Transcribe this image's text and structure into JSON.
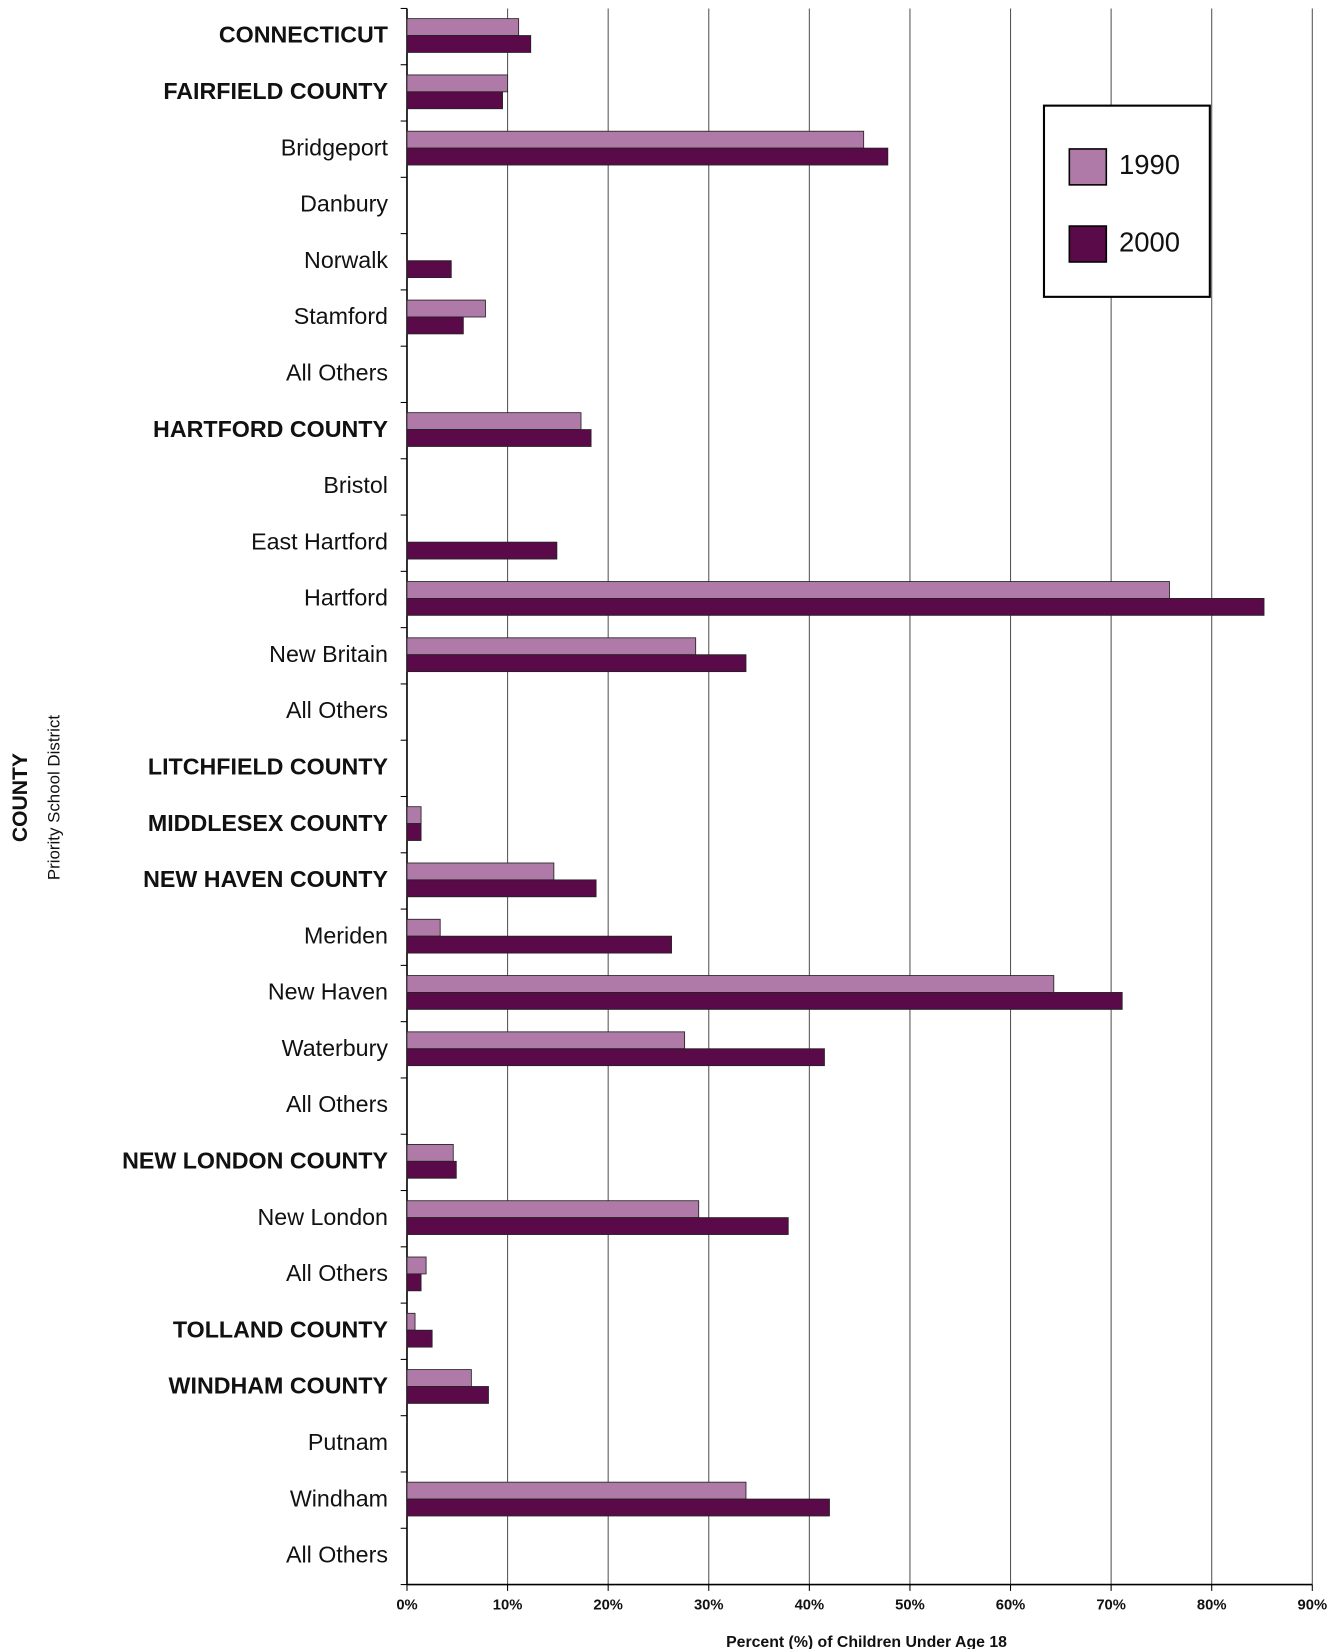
{
  "chart_data": {
    "type": "bar",
    "orientation": "horizontal",
    "x_label": "Percent (%) of Children Under Age 18",
    "y_label": "COUNTY",
    "y_sublabel": "Priority School District",
    "categories": [
      "CONNECTICUT",
      "FAIRFIELD COUNTY",
      "Bridgeport",
      "Danbury",
      "Norwalk",
      "Stamford",
      "All Others",
      "HARTFORD COUNTY",
      "Bristol",
      "East Hartford",
      "Hartford",
      "New Britain",
      "All Others",
      "LITCHFIELD COUNTY",
      "MIDDLESEX COUNTY",
      "NEW HAVEN COUNTY",
      "Meriden",
      "New Haven",
      "Waterbury",
      "All Others",
      "NEW LONDON COUNTY",
      "New London",
      "All Others",
      "TOLLAND COUNTY",
      "WINDHAM COUNTY",
      "Putnam",
      "Windham",
      "All Others"
    ],
    "series": [
      {
        "name": "1990",
        "color": "#b07aa8",
        "values": [
          11.1,
          10.0,
          45.4,
          null,
          null,
          7.8,
          null,
          17.3,
          null,
          null,
          75.8,
          28.7,
          null,
          null,
          1.4,
          14.6,
          3.3,
          64.3,
          27.6,
          null,
          4.6,
          29.0,
          1.9,
          0.8,
          6.4,
          null,
          33.7,
          null
        ]
      },
      {
        "name": "2000",
        "color": "#5a0a48",
        "values": [
          12.3,
          9.5,
          47.8,
          null,
          4.4,
          5.6,
          null,
          18.3,
          null,
          14.9,
          85.2,
          33.7,
          null,
          null,
          1.4,
          18.8,
          26.3,
          71.1,
          41.5,
          null,
          4.9,
          37.9,
          1.4,
          2.5,
          8.1,
          null,
          42.0,
          null
        ]
      }
    ],
    "xlim": [
      0,
      90
    ],
    "xticks": [
      {
        "value": 0,
        "label": "0%"
      },
      {
        "value": 10,
        "label": "10%"
      },
      {
        "value": 20,
        "label": "20%"
      },
      {
        "value": 30,
        "label": "30%"
      },
      {
        "value": 40,
        "label": "40%"
      },
      {
        "value": 50,
        "label": "50%"
      },
      {
        "value": 60,
        "label": "60%"
      },
      {
        "value": 70,
        "label": "70%"
      },
      {
        "value": 80,
        "label": "80%"
      },
      {
        "value": 90,
        "label": "90%"
      }
    ],
    "grid": true,
    "legend": "upper right"
  }
}
